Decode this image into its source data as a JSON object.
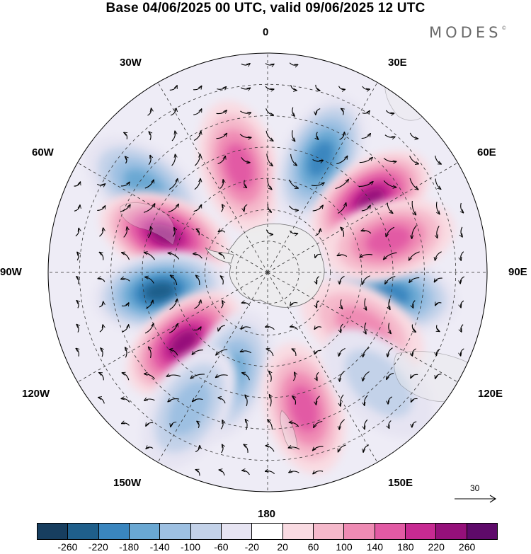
{
  "title": "Base 04/06/2025 00 UTC, valid 09/06/2025 12 UTC",
  "brand": {
    "name": "MODES",
    "mark": "©"
  },
  "longitude_labels": {
    "top": "0",
    "bottom": "180",
    "left": "90W",
    "right": "90E",
    "upper_left": "30W",
    "upper_right": "30E",
    "mid_upper_left": "60W",
    "mid_upper_right": "60E",
    "mid_lower_left": "120W",
    "mid_lower_right": "120E",
    "lower_left": "150W",
    "lower_right": "150E"
  },
  "reference_vector": {
    "value": "30"
  },
  "colorbar": {
    "colors": [
      "#173e5f",
      "#1f5f8b",
      "#3a86bf",
      "#6aa8d3",
      "#9dc0e2",
      "#c3d2e9",
      "#e6e4f2",
      "#ffffff",
      "#f9dbe2",
      "#f5b9cb",
      "#ef8bb4",
      "#e25aa4",
      "#c72a92",
      "#95107a",
      "#5e0a6a"
    ],
    "ticks": [
      "-260",
      "-220",
      "-180",
      "-140",
      "-100",
      "-60",
      "-20",
      "20",
      "60",
      "100",
      "140",
      "180",
      "220",
      "260"
    ]
  },
  "map": {
    "projection": "south-polar-stereographic",
    "graticule": "dashed",
    "anomaly_centers": [
      {
        "lon": -15,
        "lat": -55,
        "value": 170
      },
      {
        "lon": 25,
        "lat": -50,
        "value": -190
      },
      {
        "lon": 55,
        "lat": -50,
        "value": 230
      },
      {
        "lon": -55,
        "lat": -42,
        "value": -150
      },
      {
        "lon": -70,
        "lat": -55,
        "value": 220
      },
      {
        "lon": 100,
        "lat": -50,
        "value": -190
      },
      {
        "lon": -100,
        "lat": -55,
        "value": -230
      },
      {
        "lon": 75,
        "lat": -50,
        "value": 160
      },
      {
        "lon": 120,
        "lat": -55,
        "value": 130
      },
      {
        "lon": -130,
        "lat": -55,
        "value": 250
      },
      {
        "lon": -160,
        "lat": -55,
        "value": -140
      },
      {
        "lon": 165,
        "lat": -45,
        "value": 150
      },
      {
        "lon": -150,
        "lat": -40,
        "value": -120
      },
      {
        "lon": 135,
        "lat": -40,
        "value": -90
      }
    ]
  }
}
